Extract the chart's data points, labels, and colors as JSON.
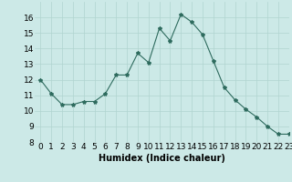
{
  "x": [
    0,
    1,
    2,
    3,
    4,
    5,
    6,
    7,
    8,
    9,
    10,
    11,
    12,
    13,
    14,
    15,
    16,
    17,
    18,
    19,
    20,
    21,
    22,
    23
  ],
  "y": [
    12.0,
    11.1,
    10.4,
    10.4,
    10.6,
    10.6,
    11.1,
    12.3,
    12.3,
    13.7,
    13.1,
    15.3,
    14.5,
    16.2,
    15.7,
    14.9,
    13.2,
    11.5,
    10.7,
    10.1,
    9.6,
    9.0,
    8.5,
    8.5
  ],
  "xlabel": "Humidex (Indice chaleur)",
  "ylim": [
    8,
    17
  ],
  "xlim": [
    -0.5,
    23
  ],
  "yticks": [
    8,
    9,
    10,
    11,
    12,
    13,
    14,
    15,
    16
  ],
  "xticks": [
    0,
    1,
    2,
    3,
    4,
    5,
    6,
    7,
    8,
    9,
    10,
    11,
    12,
    13,
    14,
    15,
    16,
    17,
    18,
    19,
    20,
    21,
    22,
    23
  ],
  "xtick_labels": [
    "0",
    "1",
    "2",
    "3",
    "4",
    "5",
    "6",
    "7",
    "8",
    "9",
    "10",
    "11",
    "12",
    "13",
    "14",
    "15",
    "16",
    "17",
    "18",
    "19",
    "20",
    "21",
    "22",
    "23"
  ],
  "line_color": "#2e6b5e",
  "marker": "*",
  "bg_color": "#cce9e7",
  "grid_color": "#b0d4d0",
  "xlabel_fontsize": 7,
  "tick_fontsize": 6.5
}
